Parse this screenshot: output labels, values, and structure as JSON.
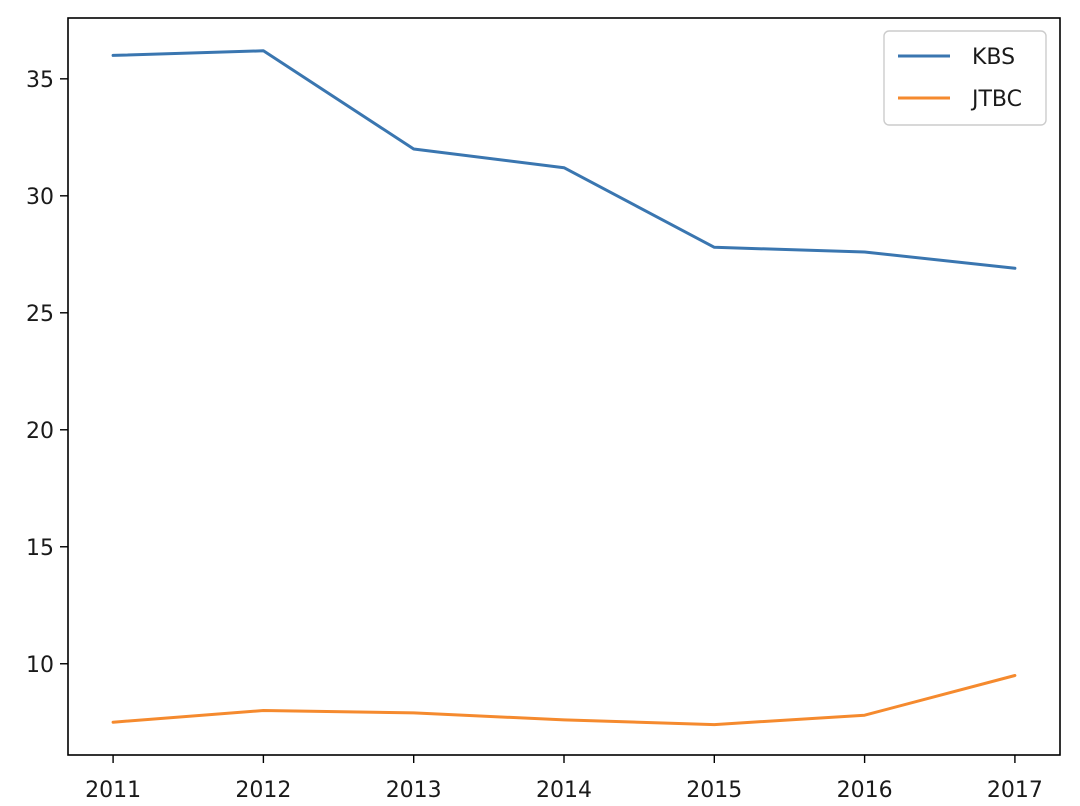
{
  "chart_data": {
    "type": "line",
    "title": "",
    "xlabel": "",
    "ylabel": "",
    "x": [
      2011,
      2012,
      2013,
      2014,
      2015,
      2016,
      2017
    ],
    "x_ticks": [
      "2011",
      "2012",
      "2013",
      "2014",
      "2015",
      "2016",
      "2017"
    ],
    "y_ticks": [
      "10",
      "15",
      "20",
      "25",
      "30",
      "35"
    ],
    "xlim": [
      2010.7,
      2017.3
    ],
    "ylim": [
      6.1,
      37.6
    ],
    "grid": false,
    "legend_position": "top-right",
    "series": [
      {
        "name": "KBS",
        "color": "#3a76b0",
        "values": [
          36.0,
          36.2,
          32.0,
          31.2,
          27.8,
          27.6,
          26.9
        ]
      },
      {
        "name": "JTBC",
        "color": "#f58a2e",
        "values": [
          7.5,
          8.0,
          7.9,
          7.6,
          7.4,
          7.8,
          9.5
        ]
      }
    ]
  }
}
